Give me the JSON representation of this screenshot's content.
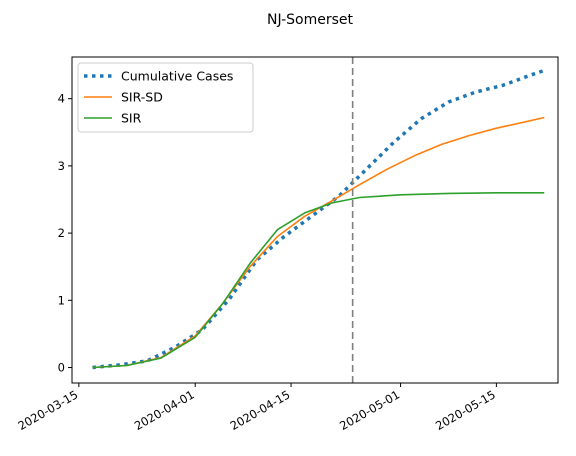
{
  "chart_data": {
    "type": "line",
    "title": "NJ-Somerset",
    "xlabel": "",
    "ylabel": "",
    "x_ticks": [
      "2020-03-15",
      "2020-04-01",
      "2020-04-15",
      "2020-05-01",
      "2020-05-15"
    ],
    "y_ticks": [
      0,
      1,
      2,
      3,
      4
    ],
    "xlim": [
      "2020-03-14",
      "2020-05-24"
    ],
    "ylim": [
      -0.23,
      4.62
    ],
    "grid": false,
    "legend_position": "top-left",
    "vline": {
      "x": "2020-04-24",
      "style": "dashed",
      "color": "#7f7f7f"
    },
    "series": [
      {
        "name": "Cumulative Cases",
        "style": "dotted",
        "color": "#1f77b4",
        "points": [
          [
            "2020-03-17",
            0.0
          ],
          [
            "2020-03-21",
            0.04
          ],
          [
            "2020-03-25",
            0.1
          ],
          [
            "2020-03-29",
            0.3
          ],
          [
            "2020-04-02",
            0.56
          ],
          [
            "2020-04-06",
            1.02
          ],
          [
            "2020-04-10",
            1.6
          ],
          [
            "2020-04-14",
            1.95
          ],
          [
            "2020-04-18",
            2.25
          ],
          [
            "2020-04-22",
            2.55
          ],
          [
            "2020-04-26",
            2.95
          ],
          [
            "2020-04-30",
            3.35
          ],
          [
            "2020-05-04",
            3.7
          ],
          [
            "2020-05-08",
            3.95
          ],
          [
            "2020-05-12",
            4.1
          ],
          [
            "2020-05-16",
            4.2
          ],
          [
            "2020-05-20",
            4.35
          ],
          [
            "2020-05-22",
            4.42
          ]
        ]
      },
      {
        "name": "SIR-SD",
        "style": "solid",
        "color": "#ff7f0e",
        "points": [
          [
            "2020-03-17",
            0.0
          ],
          [
            "2020-03-22",
            0.03
          ],
          [
            "2020-03-27",
            0.15
          ],
          [
            "2020-04-01",
            0.47
          ],
          [
            "2020-04-05",
            0.95
          ],
          [
            "2020-04-09",
            1.5
          ],
          [
            "2020-04-13",
            1.95
          ],
          [
            "2020-04-17",
            2.25
          ],
          [
            "2020-04-21",
            2.48
          ],
          [
            "2020-04-25",
            2.72
          ],
          [
            "2020-04-29",
            2.95
          ],
          [
            "2020-05-03",
            3.15
          ],
          [
            "2020-05-07",
            3.32
          ],
          [
            "2020-05-11",
            3.45
          ],
          [
            "2020-05-15",
            3.56
          ],
          [
            "2020-05-19",
            3.65
          ],
          [
            "2020-05-22",
            3.72
          ]
        ]
      },
      {
        "name": "SIR",
        "style": "solid",
        "color": "#2ca02c",
        "points": [
          [
            "2020-03-17",
            0.0
          ],
          [
            "2020-03-22",
            0.03
          ],
          [
            "2020-03-27",
            0.14
          ],
          [
            "2020-04-01",
            0.45
          ],
          [
            "2020-04-05",
            0.95
          ],
          [
            "2020-04-09",
            1.55
          ],
          [
            "2020-04-13",
            2.05
          ],
          [
            "2020-04-17",
            2.3
          ],
          [
            "2020-04-21",
            2.45
          ],
          [
            "2020-04-25",
            2.53
          ],
          [
            "2020-05-01",
            2.57
          ],
          [
            "2020-05-08",
            2.59
          ],
          [
            "2020-05-15",
            2.6
          ],
          [
            "2020-05-22",
            2.6
          ]
        ]
      }
    ]
  }
}
